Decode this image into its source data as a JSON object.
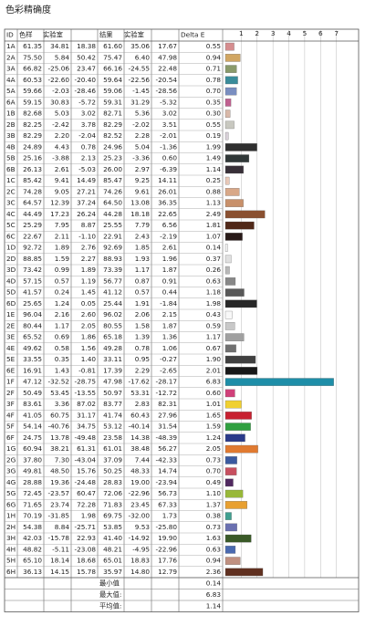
{
  "title": "色彩精确度",
  "table": {
    "header": [
      "ID",
      "色样",
      "实验室",
      "结果",
      "实验室",
      "Delta E"
    ],
    "rows": [
      [
        "1A",
        "61.35",
        "34.81",
        "18.38",
        "61.60",
        "35.06",
        "17.67",
        "0.55"
      ],
      [
        "2A",
        "75.50",
        "5.84",
        "50.42",
        "75.47",
        "6.40",
        "47.98",
        "0.94"
      ],
      [
        "3A",
        "66.82",
        "-25.06",
        "23.47",
        "66.16",
        "-24.55",
        "22.48",
        "0.71"
      ],
      [
        "4A",
        "60.53",
        "-22.60",
        "-20.40",
        "59.64",
        "-22.56",
        "-20.54",
        "0.78"
      ],
      [
        "5A",
        "59.66",
        "-2.03",
        "-28.46",
        "59.06",
        "-1.45",
        "-28.56",
        "0.70"
      ],
      [
        "6A",
        "59.15",
        "30.83",
        "-5.72",
        "59.31",
        "31.29",
        "-5.32",
        "0.35"
      ],
      [
        "1B",
        "82.68",
        "5.03",
        "3.02",
        "82.71",
        "5.36",
        "3.02",
        "0.30"
      ],
      [
        "2B",
        "82.25",
        "-2.42",
        "3.78",
        "82.29",
        "-2.02",
        "3.51",
        "0.55"
      ],
      [
        "3B",
        "82.29",
        "2.20",
        "-2.04",
        "82.52",
        "2.28",
        "-2.01",
        "0.19"
      ],
      [
        "4B",
        "24.89",
        "4.43",
        "0.78",
        "24.96",
        "5.04",
        "-1.36",
        "1.99"
      ],
      [
        "5B",
        "25.16",
        "-3.88",
        "2.13",
        "25.23",
        "-3.36",
        "0.60",
        "1.49"
      ],
      [
        "6B",
        "26.13",
        "2.61",
        "-5.03",
        "26.00",
        "2.97",
        "-6.39",
        "1.14"
      ],
      [
        "1C",
        "85.42",
        "9.41",
        "14.49",
        "85.47",
        "9.25",
        "14.11",
        "0.25"
      ],
      [
        "2C",
        "74.28",
        "9.05",
        "27.21",
        "74.26",
        "9.61",
        "26.01",
        "0.88"
      ],
      [
        "3C",
        "64.57",
        "12.39",
        "37.24",
        "64.50",
        "13.08",
        "36.35",
        "1.13"
      ],
      [
        "4C",
        "44.49",
        "17.23",
        "26.24",
        "44.28",
        "18.18",
        "22.65",
        "2.49"
      ],
      [
        "5C",
        "25.29",
        "7.95",
        "8.87",
        "25.55",
        "7.79",
        "6.56",
        "1.81"
      ],
      [
        "6C",
        "22.67",
        "2.11",
        "-1.10",
        "22.91",
        "2.43",
        "-2.19",
        "1.07"
      ],
      [
        "1D",
        "92.72",
        "1.89",
        "2.76",
        "92.69",
        "1.85",
        "2.61",
        "0.14"
      ],
      [
        "2D",
        "88.85",
        "1.59",
        "2.27",
        "88.93",
        "1.93",
        "1.96",
        "0.37"
      ],
      [
        "3D",
        "73.42",
        "0.99",
        "1.89",
        "73.39",
        "1.17",
        "1.87",
        "0.26"
      ],
      [
        "4D",
        "57.15",
        "0.57",
        "1.19",
        "56.77",
        "0.87",
        "0.91",
        "0.63"
      ],
      [
        "5D",
        "41.57",
        "0.24",
        "1.45",
        "41.12",
        "0.57",
        "0.44",
        "1.18"
      ],
      [
        "6D",
        "25.65",
        "1.24",
        "0.05",
        "25.44",
        "1.91",
        "-1.84",
        "1.98"
      ],
      [
        "1E",
        "96.04",
        "2.16",
        "2.60",
        "96.02",
        "2.06",
        "2.15",
        "0.43"
      ],
      [
        "2E",
        "80.44",
        "1.17",
        "2.05",
        "80.55",
        "1.58",
        "1.87",
        "0.59"
      ],
      [
        "3E",
        "65.52",
        "0.69",
        "1.86",
        "65.18",
        "1.39",
        "1.36",
        "1.17"
      ],
      [
        "4E",
        "49.62",
        "0.58",
        "1.56",
        "49.28",
        "0.78",
        "1.06",
        "0.67"
      ],
      [
        "5E",
        "33.55",
        "0.35",
        "1.40",
        "33.11",
        "0.95",
        "-0.27",
        "1.90"
      ],
      [
        "6E",
        "16.91",
        "1.43",
        "-0.81",
        "17.39",
        "2.29",
        "-2.65",
        "2.01"
      ],
      [
        "1F",
        "47.12",
        "-32.52",
        "-28.75",
        "47.98",
        "-17.62",
        "-28.17",
        "6.83"
      ],
      [
        "2F",
        "50.49",
        "53.45",
        "-13.55",
        "50.97",
        "53.31",
        "-12.72",
        "0.60"
      ],
      [
        "3F",
        "83.61",
        "3.36",
        "87.02",
        "83.77",
        "2.83",
        "82.31",
        "1.01"
      ],
      [
        "4F",
        "41.05",
        "60.75",
        "31.17",
        "41.74",
        "60.43",
        "27.96",
        "1.65"
      ],
      [
        "5F",
        "54.14",
        "-40.76",
        "34.75",
        "53.12",
        "-40.14",
        "31.54",
        "1.59"
      ],
      [
        "6F",
        "24.75",
        "13.78",
        "-49.48",
        "23.58",
        "14.38",
        "-48.39",
        "1.24"
      ],
      [
        "1G",
        "60.94",
        "38.21",
        "61.31",
        "61.01",
        "38.48",
        "56.27",
        "2.05"
      ],
      [
        "2G",
        "37.80",
        "7.30",
        "-43.04",
        "37.09",
        "7.44",
        "-42.33",
        "0.73"
      ],
      [
        "3G",
        "49.81",
        "48.50",
        "15.76",
        "50.25",
        "48.33",
        "14.74",
        "0.70"
      ],
      [
        "4G",
        "28.88",
        "19.36",
        "-24.48",
        "28.83",
        "19.00",
        "-23.94",
        "0.49"
      ],
      [
        "5G",
        "72.45",
        "-23.57",
        "60.47",
        "72.06",
        "-22.96",
        "56.73",
        "1.10"
      ],
      [
        "6G",
        "71.65",
        "23.74",
        "72.28",
        "71.83",
        "23.45",
        "67.33",
        "1.37"
      ],
      [
        "1H",
        "70.19",
        "-31.85",
        "1.98",
        "69.75",
        "-32.00",
        "1.73",
        "0.38"
      ],
      [
        "2H",
        "54.38",
        "8.84",
        "-25.71",
        "53.85",
        "9.53",
        "-25.80",
        "0.73"
      ],
      [
        "3H",
        "42.03",
        "-15.78",
        "22.93",
        "41.40",
        "-14.92",
        "19.90",
        "1.63"
      ],
      [
        "4H",
        "48.82",
        "-5.11",
        "-23.08",
        "48.21",
        "-4.95",
        "-22.96",
        "0.63"
      ],
      [
        "5H",
        "65.10",
        "18.14",
        "18.68",
        "65.01",
        "18.83",
        "17.76",
        "0.94"
      ],
      [
        "6H",
        "36.13",
        "14.15",
        "15.78",
        "35.97",
        "14.80",
        "12.79",
        "2.36"
      ]
    ],
    "bar_colors": [
      "#d58d8f",
      "#d1a662",
      "#8a9a6a",
      "#3a8c9a",
      "#7a8ec0",
      "#c06090",
      "#d8b8a8",
      "#c8c8c0",
      "#d8d0d8",
      "#303030",
      "#303838",
      "#383038",
      "#e8c8b8",
      "#d8a888",
      "#c8906a",
      "#8a5030",
      "#502818",
      "#281a18",
      "#f0f0f0",
      "#e0e0e0",
      "#b8b8b8",
      "#888888",
      "#585858",
      "#282828",
      "#f8f8f8",
      "#c8c8c8",
      "#a0a0a0",
      "#707070",
      "#404040",
      "#181818",
      "#1e8ea8",
      "#d0407a",
      "#f0d030",
      "#c82030",
      "#30a040",
      "#2a3a8a",
      "#e07a30",
      "#3a5aa0",
      "#c85060",
      "#502860",
      "#98b838",
      "#e8a030",
      "#40a090",
      "#6a70b0",
      "#3a5a28",
      "#4a6ab0",
      "#c09080",
      "#603020"
    ],
    "axis": {
      "xlim": [
        0,
        8.4
      ],
      "ticks": [
        1,
        2,
        3,
        4,
        5,
        6,
        7
      ]
    },
    "summary": [
      {
        "label": "最小值",
        "value": "0.14"
      },
      {
        "label": "最大值:",
        "value": "6.83"
      },
      {
        "label": "平均值:",
        "value": "1.14"
      }
    ]
  }
}
